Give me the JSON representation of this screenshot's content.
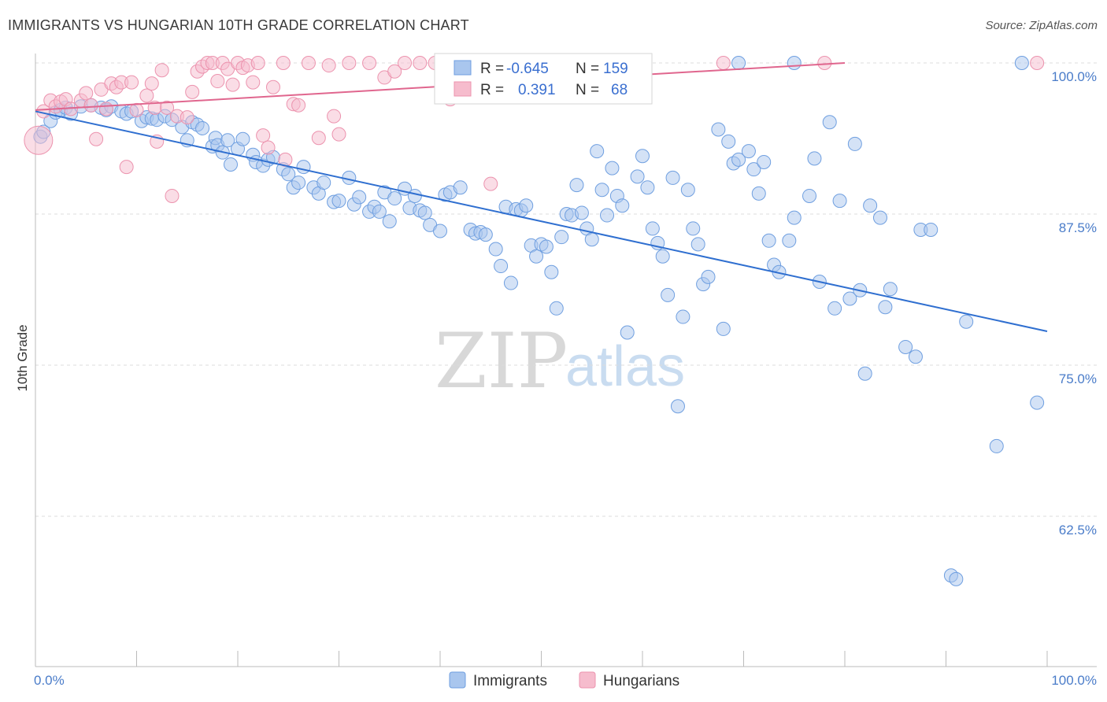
{
  "header": {
    "title": "IMMIGRANTS VS HUNGARIAN 10TH GRADE CORRELATION CHART",
    "source": "Source: ZipAtlas.com"
  },
  "watermark": {
    "zip": "ZIP",
    "atlas": "atlas"
  },
  "legend_top": {
    "rows": [
      {
        "r_label": "R =",
        "r_value": "-0.645",
        "n_label": "N =",
        "n_value": "159"
      },
      {
        "r_label": "R =",
        "r_value": "0.391",
        "n_label": "N =",
        "n_value": "68"
      }
    ]
  },
  "legend_bottom": {
    "immigrants": "Immigrants",
    "hungarians": "Hungarians"
  },
  "colors": {
    "immigrants_fill": "#a9c6ee",
    "immigrants_stroke": "#6f9fe0",
    "immigrants_line": "#2f6fd0",
    "hungarians_fill": "#f6bccd",
    "hungarians_stroke": "#ec93ae",
    "hungarians_line": "#e0668e",
    "grid": "#dddddd",
    "tick_text": "#4a7cc9"
  },
  "chart_data": {
    "type": "scatter",
    "title": "IMMIGRANTS VS HUNGARIAN 10TH GRADE CORRELATION CHART",
    "xlabel": "",
    "ylabel": "10th Grade",
    "xlim": [
      0,
      100
    ],
    "ylim": [
      50,
      102
    ],
    "x_ticks": [
      "0.0%",
      "100.0%"
    ],
    "y_ticks": [
      {
        "value": 100,
        "label": "100.0%"
      },
      {
        "value": 87.5,
        "label": "87.5%"
      },
      {
        "value": 75,
        "label": "75.0%"
      },
      {
        "value": 62.5,
        "label": "62.5%"
      }
    ],
    "grid": true,
    "legend_position": "top-center",
    "series": [
      {
        "name": "Immigrants",
        "r": -0.645,
        "n": 159,
        "trend": [
          [
            0,
            96.0
          ],
          [
            100,
            77.8
          ]
        ],
        "points": [
          [
            0.5,
            93.9
          ],
          [
            0.8,
            94.3
          ],
          [
            1.5,
            95.2
          ],
          [
            2.0,
            95.9
          ],
          [
            2.5,
            96.1
          ],
          [
            3.0,
            96.3
          ],
          [
            3.5,
            95.8
          ],
          [
            4.5,
            96.4
          ],
          [
            5.5,
            96.5
          ],
          [
            6.5,
            96.3
          ],
          [
            7.0,
            96.1
          ],
          [
            7.5,
            96.4
          ],
          [
            8.5,
            96.0
          ],
          [
            9.0,
            95.8
          ],
          [
            9.5,
            96.0
          ],
          [
            10.5,
            95.2
          ],
          [
            11.0,
            95.5
          ],
          [
            11.5,
            95.4
          ],
          [
            12.0,
            95.3
          ],
          [
            12.8,
            95.6
          ],
          [
            13.5,
            95.3
          ],
          [
            14.5,
            94.7
          ],
          [
            15.0,
            93.6
          ],
          [
            15.5,
            95.1
          ],
          [
            16.0,
            94.9
          ],
          [
            16.5,
            94.6
          ],
          [
            17.5,
            93.1
          ],
          [
            17.8,
            93.8
          ],
          [
            18.0,
            93.2
          ],
          [
            18.5,
            92.6
          ],
          [
            19.0,
            93.6
          ],
          [
            19.3,
            91.6
          ],
          [
            20.0,
            92.9
          ],
          [
            20.5,
            93.7
          ],
          [
            21.5,
            92.4
          ],
          [
            21.8,
            91.8
          ],
          [
            22.5,
            91.5
          ],
          [
            23.0,
            92.0
          ],
          [
            23.5,
            92.2
          ],
          [
            24.5,
            91.2
          ],
          [
            25.0,
            90.8
          ],
          [
            25.5,
            89.7
          ],
          [
            26.0,
            90.1
          ],
          [
            26.5,
            91.4
          ],
          [
            27.5,
            89.7
          ],
          [
            28.0,
            89.2
          ],
          [
            28.5,
            90.1
          ],
          [
            29.5,
            88.5
          ],
          [
            30.0,
            88.6
          ],
          [
            31.0,
            90.5
          ],
          [
            31.5,
            88.3
          ],
          [
            32.0,
            88.9
          ],
          [
            33.0,
            87.7
          ],
          [
            33.5,
            88.1
          ],
          [
            34.0,
            87.7
          ],
          [
            34.5,
            89.3
          ],
          [
            35.0,
            86.9
          ],
          [
            35.5,
            88.8
          ],
          [
            36.5,
            89.6
          ],
          [
            37.0,
            88.0
          ],
          [
            37.5,
            89.0
          ],
          [
            38.0,
            87.8
          ],
          [
            38.5,
            87.6
          ],
          [
            39.0,
            86.6
          ],
          [
            40.0,
            86.1
          ],
          [
            40.5,
            89.1
          ],
          [
            41.0,
            89.3
          ],
          [
            42.0,
            89.7
          ],
          [
            43.0,
            86.2
          ],
          [
            43.5,
            85.9
          ],
          [
            44.0,
            86.0
          ],
          [
            44.5,
            85.8
          ],
          [
            45.5,
            84.6
          ],
          [
            46.0,
            83.2
          ],
          [
            46.5,
            88.1
          ],
          [
            47.0,
            81.8
          ],
          [
            47.5,
            87.9
          ],
          [
            48.0,
            87.8
          ],
          [
            48.5,
            88.2
          ],
          [
            49.0,
            84.9
          ],
          [
            49.5,
            84.0
          ],
          [
            50.0,
            85.0
          ],
          [
            50.5,
            84.8
          ],
          [
            51.0,
            82.7
          ],
          [
            51.5,
            79.7
          ],
          [
            52.0,
            85.6
          ],
          [
            52.5,
            87.5
          ],
          [
            53.0,
            87.4
          ],
          [
            53.5,
            89.9
          ],
          [
            54.0,
            87.6
          ],
          [
            54.5,
            86.3
          ],
          [
            55.0,
            85.4
          ],
          [
            55.5,
            92.7
          ],
          [
            56.0,
            89.5
          ],
          [
            56.5,
            87.4
          ],
          [
            57.0,
            91.3
          ],
          [
            57.5,
            89.0
          ],
          [
            58.0,
            88.2
          ],
          [
            58.5,
            77.7
          ],
          [
            59.5,
            90.6
          ],
          [
            60.0,
            92.3
          ],
          [
            60.5,
            89.7
          ],
          [
            61.0,
            86.3
          ],
          [
            61.5,
            85.1
          ],
          [
            62.0,
            84.0
          ],
          [
            62.5,
            80.8
          ],
          [
            63.0,
            90.5
          ],
          [
            63.5,
            71.6
          ],
          [
            64.0,
            79.0
          ],
          [
            64.5,
            89.5
          ],
          [
            65.0,
            86.3
          ],
          [
            65.5,
            85.0
          ],
          [
            66.0,
            81.7
          ],
          [
            66.5,
            82.3
          ],
          [
            67.5,
            94.5
          ],
          [
            68.0,
            78.0
          ],
          [
            68.5,
            93.5
          ],
          [
            69.0,
            91.7
          ],
          [
            69.5,
            92.0
          ],
          [
            70.5,
            92.7
          ],
          [
            71.0,
            91.2
          ],
          [
            71.5,
            89.2
          ],
          [
            72.0,
            91.8
          ],
          [
            72.5,
            85.3
          ],
          [
            73.0,
            83.3
          ],
          [
            73.5,
            82.7
          ],
          [
            74.5,
            85.3
          ],
          [
            75.0,
            87.2
          ],
          [
            76.5,
            89.0
          ],
          [
            77.0,
            92.1
          ],
          [
            77.5,
            81.9
          ],
          [
            78.5,
            95.1
          ],
          [
            79.0,
            79.7
          ],
          [
            79.5,
            88.6
          ],
          [
            80.5,
            80.5
          ],
          [
            81.0,
            93.3
          ],
          [
            81.5,
            81.2
          ],
          [
            82.0,
            74.3
          ],
          [
            82.5,
            88.2
          ],
          [
            83.5,
            87.2
          ],
          [
            84.0,
            79.8
          ],
          [
            84.5,
            81.3
          ],
          [
            86.0,
            76.5
          ],
          [
            87.0,
            75.7
          ],
          [
            87.5,
            86.2
          ],
          [
            88.5,
            86.2
          ],
          [
            90.5,
            57.6
          ],
          [
            91.0,
            57.3
          ],
          [
            92.0,
            78.6
          ],
          [
            95.0,
            68.3
          ],
          [
            97.5,
            100.0
          ],
          [
            99.0,
            71.9
          ],
          [
            69.5,
            100.0
          ],
          [
            75.0,
            100.0
          ]
        ]
      },
      {
        "name": "Hungarians",
        "r": 0.391,
        "n": 68,
        "trend": [
          [
            0,
            96.1
          ],
          [
            80,
            100.0
          ]
        ],
        "points": [
          [
            0.3,
            93.6
          ],
          [
            0.8,
            96.0
          ],
          [
            1.5,
            96.9
          ],
          [
            2.0,
            96.4
          ],
          [
            2.5,
            96.8
          ],
          [
            3.0,
            97.0
          ],
          [
            3.5,
            96.2
          ],
          [
            4.5,
            96.9
          ],
          [
            5.0,
            97.5
          ],
          [
            5.5,
            96.5
          ],
          [
            6.0,
            93.7
          ],
          [
            6.5,
            97.8
          ],
          [
            7.0,
            96.2
          ],
          [
            7.5,
            98.3
          ],
          [
            8.0,
            98.0
          ],
          [
            8.5,
            98.4
          ],
          [
            9.0,
            91.4
          ],
          [
            9.5,
            98.4
          ],
          [
            10.0,
            96.1
          ],
          [
            11.0,
            97.3
          ],
          [
            11.5,
            98.3
          ],
          [
            11.8,
            96.3
          ],
          [
            12.0,
            93.5
          ],
          [
            12.5,
            99.4
          ],
          [
            13.0,
            96.3
          ],
          [
            13.5,
            89.0
          ],
          [
            14.0,
            95.6
          ],
          [
            15.0,
            95.5
          ],
          [
            15.5,
            97.6
          ],
          [
            16.0,
            99.3
          ],
          [
            16.5,
            99.7
          ],
          [
            17.0,
            100.0
          ],
          [
            17.5,
            100.0
          ],
          [
            18.0,
            98.5
          ],
          [
            18.5,
            100.0
          ],
          [
            19.0,
            99.5
          ],
          [
            19.5,
            98.2
          ],
          [
            20.0,
            100.0
          ],
          [
            20.5,
            99.6
          ],
          [
            21.0,
            99.8
          ],
          [
            21.5,
            98.4
          ],
          [
            22.0,
            100.0
          ],
          [
            22.5,
            94.0
          ],
          [
            23.0,
            93.0
          ],
          [
            23.5,
            98.0
          ],
          [
            24.5,
            100.0
          ],
          [
            24.7,
            92.0
          ],
          [
            25.5,
            96.6
          ],
          [
            26.0,
            96.5
          ],
          [
            27.0,
            100.0
          ],
          [
            28.0,
            93.8
          ],
          [
            29.0,
            99.8
          ],
          [
            29.5,
            95.6
          ],
          [
            30.0,
            94.1
          ],
          [
            31.0,
            100.0
          ],
          [
            33.0,
            100.0
          ],
          [
            34.5,
            98.8
          ],
          [
            35.5,
            99.3
          ],
          [
            36.5,
            100.0
          ],
          [
            38.0,
            100.0
          ],
          [
            39.5,
            100.0
          ],
          [
            41.0,
            97.0
          ],
          [
            41.5,
            100.0
          ],
          [
            44.5,
            97.2
          ],
          [
            45.0,
            90.0
          ],
          [
            68.0,
            100.0
          ],
          [
            78.0,
            100.0
          ],
          [
            99.0,
            100.0
          ]
        ]
      }
    ]
  }
}
